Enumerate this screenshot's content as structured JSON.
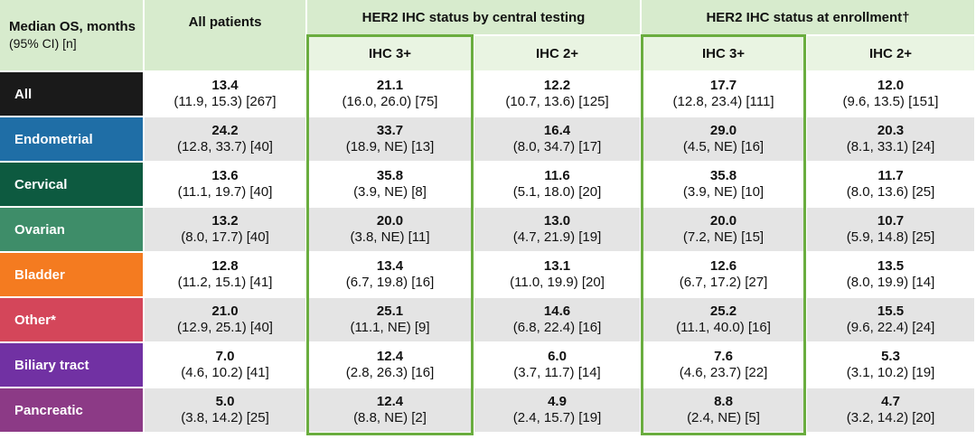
{
  "header": {
    "corner_title": "Median OS, months",
    "corner_subtitle": "(95% CI) [n]",
    "all_patients": "All patients",
    "groups": [
      {
        "title": "HER2 IHC status by central testing",
        "columns": [
          "IHC 3+",
          "IHC 2+"
        ]
      },
      {
        "title": "HER2 IHC status at enrollment†",
        "columns": [
          "IHC 3+",
          "IHC 2+"
        ]
      }
    ]
  },
  "rows": [
    {
      "label": "All",
      "color": "#1a1a1a",
      "cells": [
        {
          "median": "13.4",
          "ci": "(11.9, 15.3) [267]"
        },
        {
          "median": "21.1",
          "ci": "(16.0, 26.0) [75]"
        },
        {
          "median": "12.2",
          "ci": "(10.7, 13.6) [125]"
        },
        {
          "median": "17.7",
          "ci": "(12.8, 23.4) [111]"
        },
        {
          "median": "12.0",
          "ci": "(9.6, 13.5) [151]"
        }
      ]
    },
    {
      "label": "Endometrial",
      "color": "#1f6ea6",
      "cells": [
        {
          "median": "24.2",
          "ci": "(12.8, 33.7) [40]"
        },
        {
          "median": "33.7",
          "ci": "(18.9, NE) [13]"
        },
        {
          "median": "16.4",
          "ci": "(8.0, 34.7) [17]"
        },
        {
          "median": "29.0",
          "ci": "(4.5, NE) [16]"
        },
        {
          "median": "20.3",
          "ci": "(8.1, 33.1) [24]"
        }
      ]
    },
    {
      "label": "Cervical",
      "color": "#0d5a40",
      "cells": [
        {
          "median": "13.6",
          "ci": "(11.1, 19.7) [40]"
        },
        {
          "median": "35.8",
          "ci": "(3.9, NE) [8]"
        },
        {
          "median": "11.6",
          "ci": "(5.1, 18.0) [20]"
        },
        {
          "median": "35.8",
          "ci": "(3.9, NE) [10]"
        },
        {
          "median": "11.7",
          "ci": "(8.0, 13.6) [25]"
        }
      ]
    },
    {
      "label": "Ovarian",
      "color": "#3e8d69",
      "cells": [
        {
          "median": "13.2",
          "ci": "(8.0, 17.7) [40]"
        },
        {
          "median": "20.0",
          "ci": "(3.8, NE) [11]"
        },
        {
          "median": "13.0",
          "ci": "(4.7, 21.9) [19]"
        },
        {
          "median": "20.0",
          "ci": "(7.2, NE) [15]"
        },
        {
          "median": "10.7",
          "ci": "(5.9, 14.8) [25]"
        }
      ]
    },
    {
      "label": "Bladder",
      "color": "#f47b20",
      "cells": [
        {
          "median": "12.8",
          "ci": "(11.2, 15.1) [41]"
        },
        {
          "median": "13.4",
          "ci": "(6.7, 19.8) [16]"
        },
        {
          "median": "13.1",
          "ci": "(11.0, 19.9) [20]"
        },
        {
          "median": "12.6",
          "ci": "(6.7, 17.2) [27]"
        },
        {
          "median": "13.5",
          "ci": "(8.0, 19.9) [14]"
        }
      ]
    },
    {
      "label": "Other*",
      "color": "#d4465a",
      "cells": [
        {
          "median": "21.0",
          "ci": "(12.9, 25.1) [40]"
        },
        {
          "median": "25.1",
          "ci": "(11.1, NE) [9]"
        },
        {
          "median": "14.6",
          "ci": "(6.8, 22.4) [16]"
        },
        {
          "median": "25.2",
          "ci": "(11.1, 40.0) [16]"
        },
        {
          "median": "15.5",
          "ci": "(9.6, 22.4) [24]"
        }
      ]
    },
    {
      "label": "Biliary tract",
      "color": "#7131a3",
      "cells": [
        {
          "median": "7.0",
          "ci": "(4.6, 10.2) [41]"
        },
        {
          "median": "12.4",
          "ci": "(2.8, 26.3) [16]"
        },
        {
          "median": "6.0",
          "ci": "(3.7, 11.7) [14]"
        },
        {
          "median": "7.6",
          "ci": "(4.6, 23.7) [22]"
        },
        {
          "median": "5.3",
          "ci": "(3.1, 10.2) [19]"
        }
      ]
    },
    {
      "label": "Pancreatic",
      "color": "#8c3a86",
      "cells": [
        {
          "median": "5.0",
          "ci": "(3.8, 14.2) [25]"
        },
        {
          "median": "12.4",
          "ci": "(8.8, NE) [2]"
        },
        {
          "median": "4.9",
          "ci": "(2.4, 15.7) [19]"
        },
        {
          "median": "8.8",
          "ci": "(2.4, NE) [5]"
        },
        {
          "median": "4.7",
          "ci": "(3.2, 14.2) [20]"
        }
      ]
    }
  ]
}
